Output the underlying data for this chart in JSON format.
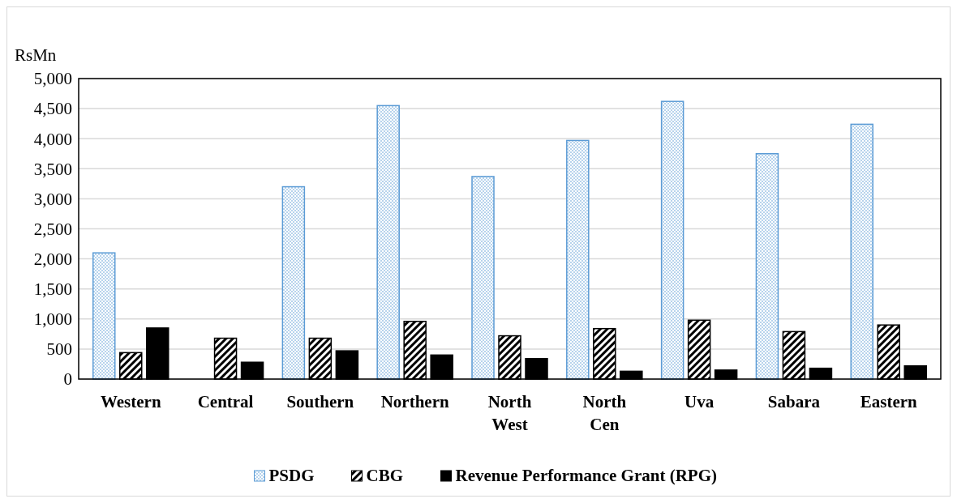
{
  "chart_data": {
    "type": "bar",
    "ylabel": "RsMn",
    "categories": [
      "Western",
      "Central",
      "Southern",
      "Northern",
      "North West",
      "North Cen",
      "Uva",
      "Sabara",
      "Eastern"
    ],
    "series": [
      {
        "name": "PSDG",
        "color": "#5b9bd5",
        "values": [
          2100,
          0,
          3200,
          4550,
          3370,
          3970,
          4620,
          3750,
          4240
        ]
      },
      {
        "name": "CBG",
        "color": "#000000",
        "values": [
          440,
          680,
          680,
          960,
          720,
          840,
          980,
          790,
          900
        ]
      },
      {
        "name": "Revenue Performance Grant (RPG)",
        "color": "#000000",
        "values": [
          850,
          280,
          470,
          400,
          340,
          130,
          150,
          180,
          220
        ]
      }
    ],
    "ylim": [
      0,
      5000
    ],
    "yticks": [
      {
        "value": 0,
        "label": "0"
      },
      {
        "value": 500,
        "label": "500"
      },
      {
        "value": 1000,
        "label": "1,000"
      },
      {
        "value": 1500,
        "label": "1,500"
      },
      {
        "value": 2000,
        "label": "2,000"
      },
      {
        "value": 2500,
        "label": "2,500"
      },
      {
        "value": 3000,
        "label": "3,000"
      },
      {
        "value": 3500,
        "label": "3,500"
      },
      {
        "value": 4000,
        "label": "4,000"
      },
      {
        "value": 4500,
        "label": "4,500"
      },
      {
        "value": 5000,
        "label": "5,000"
      }
    ],
    "grid": "y",
    "legend": "bottom"
  }
}
